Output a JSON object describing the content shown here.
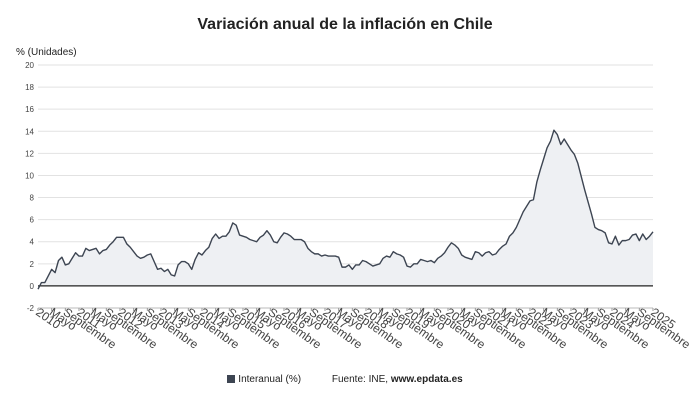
{
  "chart_data": {
    "type": "area",
    "title": "Variación anual de la inflación en Chile",
    "ylabel": "% (Unidades)",
    "ylim": [
      -2,
      20
    ],
    "yticks": [
      -2,
      0,
      2,
      4,
      6,
      8,
      10,
      12,
      14,
      16,
      18,
      20
    ],
    "xlabels": [
      {
        "label": "2010",
        "year": 2010,
        "month": 1
      },
      {
        "label": "Mayo",
        "year": 2010,
        "month": 5
      },
      {
        "label": "Septiembre",
        "year": 2010,
        "month": 9
      },
      {
        "label": "2011",
        "year": 2011,
        "month": 1
      },
      {
        "label": "Mayo",
        "year": 2011,
        "month": 5
      },
      {
        "label": "Septiembre",
        "year": 2011,
        "month": 9
      },
      {
        "label": "2012",
        "year": 2012,
        "month": 1
      },
      {
        "label": "Mayo",
        "year": 2012,
        "month": 5
      },
      {
        "label": "Septiembre",
        "year": 2012,
        "month": 9
      },
      {
        "label": "2013",
        "year": 2013,
        "month": 1
      },
      {
        "label": "Mayo",
        "year": 2013,
        "month": 5
      },
      {
        "label": "Septiembre",
        "year": 2013,
        "month": 9
      },
      {
        "label": "2014",
        "year": 2014,
        "month": 1
      },
      {
        "label": "Mayo",
        "year": 2014,
        "month": 5
      },
      {
        "label": "Septiembre",
        "year": 2014,
        "month": 9
      },
      {
        "label": "2015",
        "year": 2015,
        "month": 1
      },
      {
        "label": "Mayo",
        "year": 2015,
        "month": 5
      },
      {
        "label": "Septiembre",
        "year": 2015,
        "month": 9
      },
      {
        "label": "2016",
        "year": 2016,
        "month": 1
      },
      {
        "label": "Mayo",
        "year": 2016,
        "month": 5
      },
      {
        "label": "Septiembre",
        "year": 2016,
        "month": 9
      },
      {
        "label": "2017",
        "year": 2017,
        "month": 1
      },
      {
        "label": "Mayo",
        "year": 2017,
        "month": 5
      },
      {
        "label": "Septiembre",
        "year": 2017,
        "month": 9
      },
      {
        "label": "2018",
        "year": 2018,
        "month": 1
      },
      {
        "label": "Mayo",
        "year": 2018,
        "month": 5
      },
      {
        "label": "Septiembre",
        "year": 2018,
        "month": 9
      },
      {
        "label": "2019",
        "year": 2019,
        "month": 1
      },
      {
        "label": "Mayo",
        "year": 2019,
        "month": 5
      },
      {
        "label": "Septiembre",
        "year": 2019,
        "month": 9
      },
      {
        "label": "2020",
        "year": 2020,
        "month": 1
      },
      {
        "label": "Mayo",
        "year": 2020,
        "month": 5
      },
      {
        "label": "Septiembre",
        "year": 2020,
        "month": 9
      },
      {
        "label": "2021",
        "year": 2021,
        "month": 1
      },
      {
        "label": "Mayo",
        "year": 2021,
        "month": 5
      },
      {
        "label": "Septiembre",
        "year": 2021,
        "month": 9
      },
      {
        "label": "2022",
        "year": 2022,
        "month": 1
      },
      {
        "label": "Mayo",
        "year": 2022,
        "month": 5
      },
      {
        "label": "Septiembre",
        "year": 2022,
        "month": 9
      },
      {
        "label": "2023",
        "year": 2023,
        "month": 1
      },
      {
        "label": "Mayo",
        "year": 2023,
        "month": 5
      },
      {
        "label": "Septiembre",
        "year": 2023,
        "month": 9
      },
      {
        "label": "2024",
        "year": 2024,
        "month": 1
      },
      {
        "label": "Mayo",
        "year": 2024,
        "month": 5
      },
      {
        "label": "Septiembre",
        "year": 2024,
        "month": 9
      },
      {
        "label": "2025",
        "year": 2025,
        "month": 1
      }
    ],
    "series": [
      {
        "name": "Interanual (%)",
        "start": {
          "year": 2010,
          "month": 1
        },
        "values": [
          -0.3,
          0.3,
          0.3,
          0.9,
          1.5,
          1.2,
          2.3,
          2.6,
          1.9,
          2.0,
          2.5,
          3.0,
          2.7,
          2.7,
          3.4,
          3.2,
          3.3,
          3.4,
          2.9,
          3.2,
          3.3,
          3.7,
          4.0,
          4.4,
          4.4,
          4.4,
          3.8,
          3.5,
          3.1,
          2.7,
          2.5,
          2.6,
          2.8,
          2.9,
          2.2,
          1.5,
          1.6,
          1.3,
          1.5,
          1.0,
          0.9,
          1.9,
          2.2,
          2.2,
          2.0,
          1.5,
          2.4,
          3.0,
          2.8,
          3.2,
          3.5,
          4.3,
          4.7,
          4.3,
          4.5,
          4.5,
          4.9,
          5.7,
          5.5,
          4.6,
          4.5,
          4.4,
          4.2,
          4.1,
          4.0,
          4.4,
          4.6,
          5.0,
          4.6,
          4.0,
          3.9,
          4.4,
          4.8,
          4.7,
          4.5,
          4.2,
          4.2,
          4.2,
          4.0,
          3.4,
          3.1,
          2.9,
          2.9,
          2.7,
          2.8,
          2.7,
          2.7,
          2.7,
          2.6,
          1.7,
          1.7,
          1.9,
          1.5,
          1.9,
          1.9,
          2.3,
          2.2,
          2.0,
          1.8,
          1.9,
          2.0,
          2.5,
          2.7,
          2.6,
          3.1,
          2.9,
          2.8,
          2.6,
          1.8,
          1.7,
          2.0,
          2.0,
          2.4,
          2.3,
          2.2,
          2.3,
          2.1,
          2.5,
          2.7,
          3.0,
          3.5,
          3.9,
          3.7,
          3.4,
          2.8,
          2.6,
          2.5,
          2.4,
          3.1,
          3.0,
          2.7,
          3.0,
          3.1,
          2.8,
          2.9,
          3.3,
          3.6,
          3.8,
          4.5,
          4.8,
          5.3,
          6.0,
          6.7,
          7.2,
          7.7,
          7.8,
          9.4,
          10.5,
          11.5,
          12.5,
          13.1,
          14.1,
          13.7,
          12.8,
          13.3,
          12.8,
          12.3,
          11.9,
          11.1,
          9.9,
          8.7,
          7.6,
          6.5,
          5.3,
          5.1,
          5.0,
          4.8,
          3.9,
          3.8,
          4.5,
          3.7,
          4.1,
          4.1,
          4.2,
          4.6,
          4.7,
          4.1,
          4.7,
          4.2,
          4.5,
          4.9
        ]
      }
    ],
    "legend": [
      {
        "label": "Interanual (%)",
        "color": "#3d4552"
      }
    ],
    "source": "Fuente: INE,",
    "source_site": "www.epdata.es",
    "colors": {
      "line": "#3d4552",
      "fill": "#eef0f3",
      "grid": "#e2e2e2",
      "zero": "#222222"
    }
  }
}
